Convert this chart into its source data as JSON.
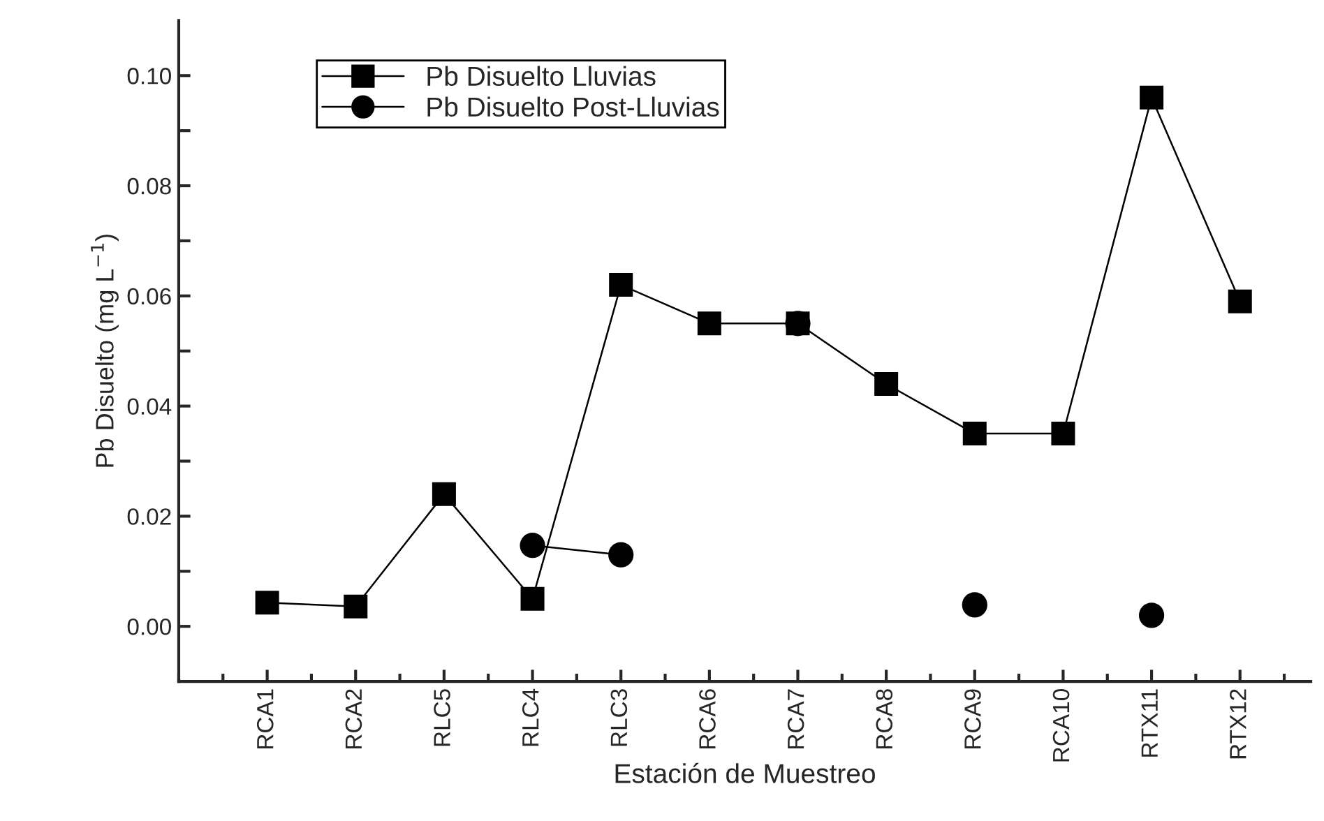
{
  "chart_data": {
    "type": "line",
    "xlabel": "Estación de Muestreo",
    "ylabel": "Pb Disuelto (mg L$^{−1}$)",
    "categories": [
      "RCA1",
      "RCA2",
      "RLC5",
      "RLC4",
      "RLC3",
      "RCA6",
      "RCA7",
      "RCA8",
      "RCA9",
      "RCA10",
      "RTX11",
      "RTX12"
    ],
    "series": [
      {
        "name": "Pb Disuelto Lluvias",
        "color": "#000000",
        "marker": "square",
        "values": [
          0.0043,
          0.0036,
          0.024,
          0.005,
          0.062,
          0.055,
          0.055,
          0.044,
          0.035,
          0.035,
          0.096,
          0.059
        ]
      },
      {
        "name": "Pb Disuelto Post-Lluvias",
        "color": "#000000",
        "marker": "circle",
        "values": [
          null,
          null,
          null,
          0.0147,
          0.013,
          null,
          0.055,
          null,
          0.0039,
          null,
          0.002,
          null
        ]
      }
    ],
    "ylim": [
      -0.01,
      0.11
    ],
    "yticks": [
      {
        "value": 0.0,
        "label": "0.00"
      },
      {
        "value": 0.01,
        "label": null
      },
      {
        "value": 0.02,
        "label": "0.02"
      },
      {
        "value": 0.03,
        "label": null
      },
      {
        "value": 0.04,
        "label": "0.04"
      },
      {
        "value": 0.05,
        "label": null
      },
      {
        "value": 0.06,
        "label": "0.06"
      },
      {
        "value": 0.07,
        "label": null
      },
      {
        "value": 0.08,
        "label": "0.08"
      },
      {
        "value": 0.09,
        "label": null
      },
      {
        "value": 0.1,
        "label": "0.10"
      }
    ],
    "grid": false,
    "legend": "top left",
    "line_style": "solid"
  }
}
